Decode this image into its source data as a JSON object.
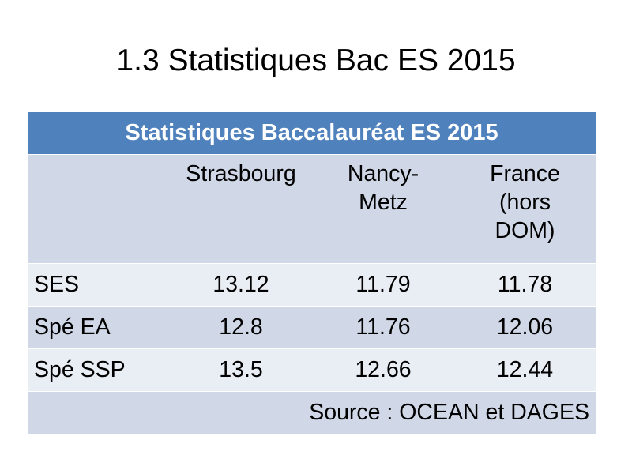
{
  "slide": {
    "title": "1.3 Statistiques Bac ES 2015"
  },
  "table": {
    "title": "Statistiques Baccalauréat ES 2015",
    "columns": [
      "Strasbourg",
      "Nancy-Metz",
      "France (hors DOM)"
    ],
    "rows": [
      {
        "label": "SES",
        "values": [
          "13.12",
          "11.79",
          "11.78"
        ]
      },
      {
        "label": "Spé EA",
        "values": [
          "12.8",
          "11.76",
          "12.06"
        ]
      },
      {
        "label": "Spé SSP",
        "values": [
          "13.5",
          "12.66",
          "12.44"
        ]
      }
    ],
    "source": "Source : OCEAN et DAGES"
  },
  "colors": {
    "header": "#4f81bd",
    "band_dark": "#d0d8e8",
    "band_light": "#e9edf4"
  }
}
